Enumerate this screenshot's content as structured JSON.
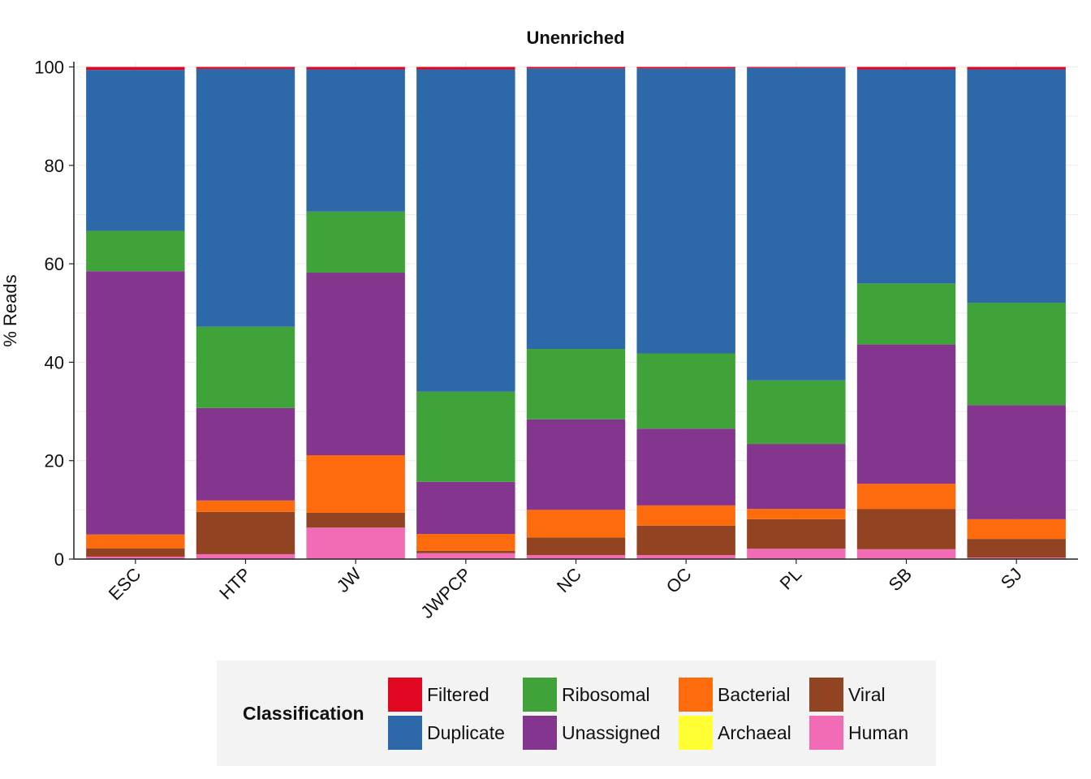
{
  "chart_data": {
    "type": "bar",
    "stacked": true,
    "title": "Unenriched",
    "xlabel": "",
    "ylabel": "% Reads",
    "ylim": [
      0,
      100
    ],
    "yticks": [
      "0",
      "20",
      "40",
      "60",
      "80",
      "100"
    ],
    "grid": true,
    "legend_position": "bottom",
    "legend_title": "Classification",
    "categories": [
      "ESC",
      "HTP",
      "JW",
      "JWPCP",
      "NC",
      "OC",
      "PL",
      "SB",
      "SJ"
    ],
    "series": [
      {
        "name": "Human",
        "color": "#f26cb5",
        "values": [
          0.5,
          1.0,
          6.4,
          1.2,
          0.8,
          0.8,
          2.1,
          2.0,
          0.3
        ]
      },
      {
        "name": "Viral",
        "color": "#924322",
        "values": [
          1.7,
          8.6,
          3.0,
          0.5,
          3.6,
          6.0,
          6.0,
          8.2,
          3.8
        ]
      },
      {
        "name": "Archaeal",
        "color": "#ffff33",
        "values": [
          0,
          0,
          0,
          0,
          0,
          0,
          0,
          0,
          0
        ]
      },
      {
        "name": "Bacterial",
        "color": "#fe6b0c",
        "values": [
          2.8,
          2.3,
          11.7,
          3.4,
          5.6,
          4.1,
          2.1,
          5.1,
          4.0
        ]
      },
      {
        "name": "Unassigned",
        "color": "#84368f",
        "values": [
          53.5,
          18.8,
          37.1,
          10.6,
          18.4,
          15.6,
          13.2,
          28.3,
          23.2
        ]
      },
      {
        "name": "Ribosomal",
        "color": "#40a33a",
        "values": [
          8.2,
          16.5,
          12.4,
          18.3,
          14.3,
          15.3,
          12.9,
          12.4,
          20.8
        ]
      },
      {
        "name": "Duplicate",
        "color": "#2d69a8",
        "values": [
          32.7,
          52.4,
          28.9,
          65.5,
          57.0,
          57.9,
          63.5,
          43.5,
          47.4
        ]
      },
      {
        "name": "Filtered",
        "color": "#e10720",
        "values": [
          0.6,
          0.4,
          0.5,
          0.5,
          0.3,
          0.3,
          0.2,
          0.5,
          0.5
        ]
      }
    ]
  },
  "legend": {
    "title": "Classification",
    "items": [
      {
        "label": "Filtered",
        "color": "#e10720"
      },
      {
        "label": "Ribosomal",
        "color": "#40a33a"
      },
      {
        "label": "Bacterial",
        "color": "#fe6b0c"
      },
      {
        "label": "Viral",
        "color": "#924322"
      },
      {
        "label": "Duplicate",
        "color": "#2d69a8"
      },
      {
        "label": "Unassigned",
        "color": "#84368f"
      },
      {
        "label": "Archaeal",
        "color": "#ffff33"
      },
      {
        "label": "Human",
        "color": "#f26cb5"
      }
    ]
  }
}
